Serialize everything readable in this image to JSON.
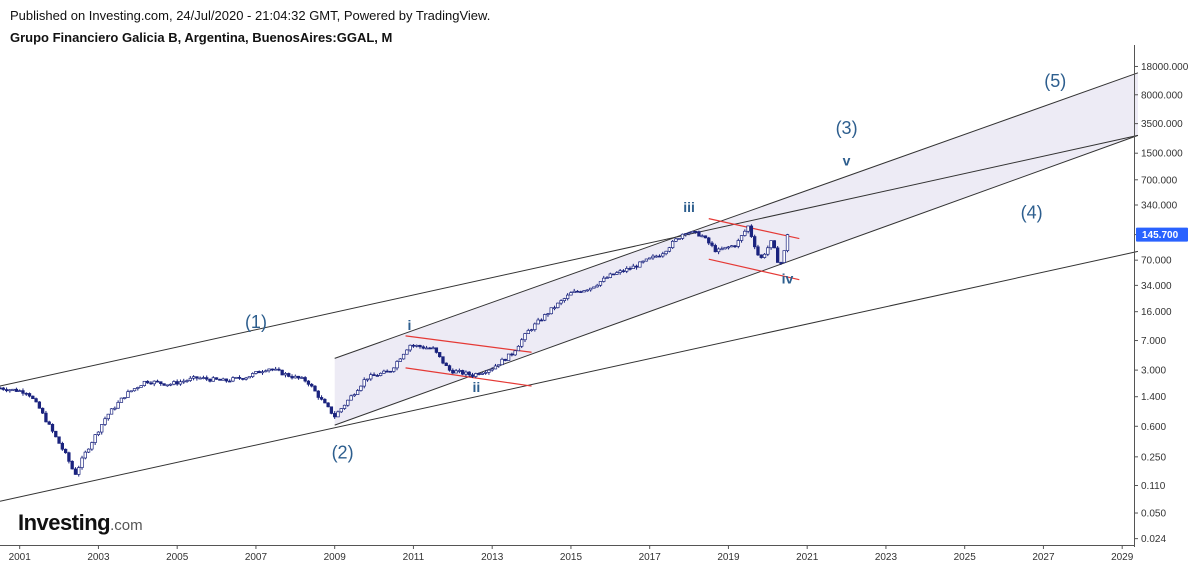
{
  "header": {
    "published": "Published on Investing.com, 24/Jul/2020 - 21:04:32 GMT, Powered by TradingView.",
    "symbol": "Grupo Financiero Galicia B, Argentina, BuenosAires:GGAL, M"
  },
  "logo": {
    "main": "Investing",
    "suffix": ".com"
  },
  "colors": {
    "candle_up": "#ffffff",
    "candle_down": "#1a237e",
    "channel_fill": "#e9e6f3",
    "line": "#333333",
    "red_line": "#e53935",
    "label": "#2d5e8e",
    "price_tag_bg": "#2962ff"
  },
  "chart_data": {
    "type": "candlestick",
    "scale": "log",
    "ylim": [
      0.02,
      25000
    ],
    "xlim": [
      2000.5,
      2029.3
    ],
    "x_ticks": [
      "2001",
      "2003",
      "2005",
      "2007",
      "2009",
      "2011",
      "2013",
      "2015",
      "2017",
      "2019",
      "2021",
      "2023",
      "2025",
      "2027",
      "2029"
    ],
    "y_ticks": [
      "18000.000",
      "8000.000",
      "3500.000",
      "1500.000",
      "700.000",
      "340.000",
      "145.700",
      "70.000",
      "34.000",
      "16.000",
      "7.000",
      "3.000",
      "1.400",
      "0.600",
      "0.250",
      "0.110",
      "0.050",
      "0.024"
    ],
    "last_price": "145.700",
    "price_path": [
      [
        2000.5,
        1.8
      ],
      [
        2001.2,
        1.6
      ],
      [
        2001.5,
        1.0
      ],
      [
        2001.9,
        0.45
      ],
      [
        2002.2,
        0.25
      ],
      [
        2002.4,
        0.15
      ],
      [
        2002.7,
        0.3
      ],
      [
        2003.2,
        0.8
      ],
      [
        2003.7,
        1.5
      ],
      [
        2004.2,
        2.2
      ],
      [
        2004.8,
        2.0
      ],
      [
        2005.5,
        2.4
      ],
      [
        2006.2,
        2.2
      ],
      [
        2006.8,
        2.5
      ],
      [
        2007.3,
        3.2
      ],
      [
        2007.8,
        2.6
      ],
      [
        2008.3,
        2.2
      ],
      [
        2008.7,
        1.2
      ],
      [
        2009.0,
        0.8
      ],
      [
        2009.3,
        1.2
      ],
      [
        2009.8,
        2.4
      ],
      [
        2010.4,
        2.9
      ],
      [
        2010.9,
        6.2
      ],
      [
        2011.5,
        5.5
      ],
      [
        2011.9,
        3.0
      ],
      [
        2012.5,
        2.6
      ],
      [
        2013.0,
        3.2
      ],
      [
        2013.5,
        4.8
      ],
      [
        2013.9,
        9.0
      ],
      [
        2014.5,
        17.0
      ],
      [
        2015.0,
        27.0
      ],
      [
        2015.5,
        32.0
      ],
      [
        2016.0,
        45.0
      ],
      [
        2016.6,
        58.0
      ],
      [
        2017.3,
        85.0
      ],
      [
        2017.9,
        160.0
      ],
      [
        2018.3,
        145.0
      ],
      [
        2018.7,
        90.0
      ],
      [
        2019.2,
        110.0
      ],
      [
        2019.5,
        185.0
      ],
      [
        2019.8,
        70.0
      ],
      [
        2020.1,
        120.0
      ],
      [
        2020.3,
        58.0
      ],
      [
        2020.55,
        145.7
      ]
    ],
    "wave_labels": [
      {
        "text": "(1)",
        "x": 2007.0,
        "y": 10.0
      },
      {
        "text": "(2)",
        "x": 2009.2,
        "y": 0.24
      },
      {
        "text": "(3)",
        "x": 2022.0,
        "y": 2600.0
      },
      {
        "text": "(4)",
        "x": 2026.7,
        "y": 230.0
      },
      {
        "text": "(5)",
        "x": 2027.3,
        "y": 10000.0
      },
      {
        "text": "i",
        "x": 2010.9,
        "y": 9.5
      },
      {
        "text": "ii",
        "x": 2012.6,
        "y": 1.6
      },
      {
        "text": "iii",
        "x": 2018.0,
        "y": 280.0
      },
      {
        "text": "iv",
        "x": 2020.5,
        "y": 36.0
      },
      {
        "text": "v",
        "x": 2022.0,
        "y": 1050.0
      }
    ],
    "trend_lines": [
      {
        "from": [
          2000.5,
          1.9
        ],
        "to": [
          2029.4,
          2500.0
        ]
      },
      {
        "from": [
          2000.5,
          0.07
        ],
        "to": [
          2029.4,
          90.0
        ]
      },
      {
        "from": [
          2009.0,
          0.62
        ],
        "to": [
          2029.4,
          2500.0
        ]
      },
      {
        "from": [
          2009.0,
          4.2
        ],
        "to": [
          2029.4,
          15000.0
        ]
      }
    ],
    "channel_shade": [
      [
        2009.0,
        4.2
      ],
      [
        2029.4,
        15000.0
      ],
      [
        2029.4,
        2500.0
      ],
      [
        2009.0,
        0.62
      ]
    ],
    "red_lines": [
      {
        "from": [
          2010.8,
          8.0
        ],
        "to": [
          2014.0,
          5.0
        ]
      },
      {
        "from": [
          2010.8,
          3.2
        ],
        "to": [
          2014.0,
          1.9
        ]
      },
      {
        "from": [
          2018.5,
          230.0
        ],
        "to": [
          2020.8,
          130.0
        ]
      },
      {
        "from": [
          2018.5,
          72.0
        ],
        "to": [
          2020.8,
          40.0
        ]
      }
    ]
  }
}
